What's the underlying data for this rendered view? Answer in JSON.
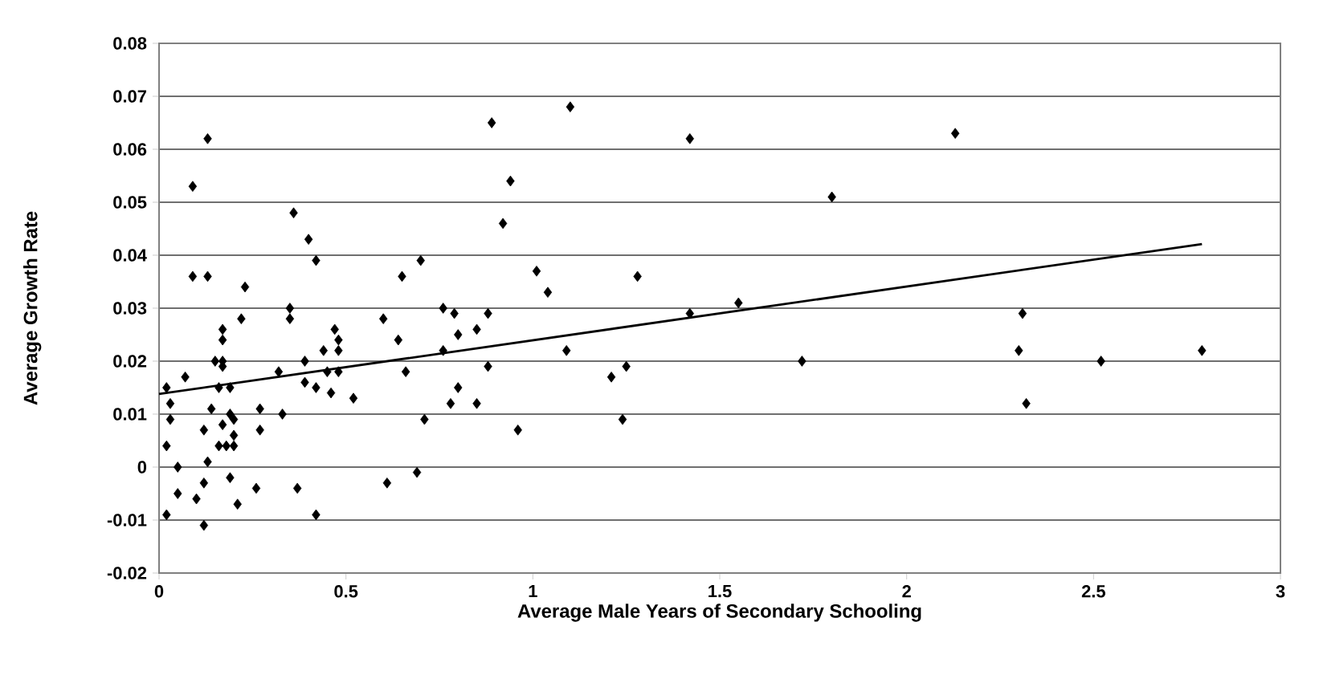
{
  "chart_data": {
    "type": "scatter",
    "xlabel": "Average Male Years of Secondary Schooling",
    "ylabel": "Average Growth Rate",
    "xlim": [
      0,
      3
    ],
    "ylim": [
      -0.02,
      0.08
    ],
    "xticks": [
      0,
      0.5,
      1,
      1.5,
      2,
      2.5,
      3
    ],
    "yticks": [
      -0.02,
      -0.01,
      0,
      0.01,
      0.02,
      0.03,
      0.04,
      0.05,
      0.06,
      0.07,
      0.08
    ],
    "grid": "y",
    "series": [
      {
        "color": "#000000",
        "marker": "diamond",
        "x": [
          0.02,
          0.02,
          0.02,
          0.03,
          0.03,
          0.05,
          0.05,
          0.07,
          0.09,
          0.09,
          0.1,
          0.12,
          0.12,
          0.12,
          0.13,
          0.13,
          0.13,
          0.14,
          0.15,
          0.16,
          0.16,
          0.17,
          0.17,
          0.17,
          0.17,
          0.17,
          0.18,
          0.19,
          0.19,
          0.19,
          0.2,
          0.2,
          0.2,
          0.21,
          0.22,
          0.23,
          0.26,
          0.27,
          0.27,
          0.32,
          0.33,
          0.35,
          0.35,
          0.36,
          0.37,
          0.39,
          0.39,
          0.4,
          0.42,
          0.42,
          0.42,
          0.44,
          0.45,
          0.46,
          0.47,
          0.48,
          0.48,
          0.48,
          0.52,
          0.6,
          0.61,
          0.64,
          0.65,
          0.66,
          0.69,
          0.7,
          0.71,
          0.76,
          0.76,
          0.79,
          0.78,
          0.8,
          0.8,
          0.85,
          0.85,
          0.88,
          0.88,
          0.89,
          0.92,
          0.94,
          0.96,
          1.01,
          1.04,
          1.1,
          1.09,
          1.21,
          1.25,
          1.24,
          1.28,
          1.42,
          1.42,
          1.55,
          1.72,
          1.8,
          2.13,
          2.31,
          2.3,
          2.32,
          2.52,
          2.79
        ],
        "values": [
          -0.009,
          0.004,
          0.015,
          0.012,
          0.009,
          0.0,
          -0.005,
          0.017,
          0.053,
          0.036,
          -0.006,
          -0.003,
          -0.011,
          0.007,
          0.062,
          0.036,
          0.001,
          0.011,
          0.02,
          0.004,
          0.015,
          0.026,
          0.02,
          0.024,
          0.019,
          0.008,
          0.004,
          -0.002,
          0.015,
          0.01,
          0.009,
          0.006,
          0.004,
          -0.007,
          0.028,
          0.034,
          -0.004,
          0.011,
          0.007,
          0.018,
          0.01,
          0.03,
          0.028,
          0.048,
          -0.004,
          0.02,
          0.016,
          0.043,
          -0.009,
          0.039,
          0.015,
          0.022,
          0.018,
          0.014,
          0.026,
          0.024,
          0.022,
          0.018,
          0.013,
          0.028,
          -0.003,
          0.024,
          0.036,
          0.018,
          -0.001,
          0.039,
          0.009,
          0.03,
          0.022,
          0.029,
          0.012,
          0.015,
          0.025,
          0.026,
          0.012,
          0.029,
          0.019,
          0.065,
          0.046,
          0.054,
          0.007,
          0.037,
          0.033,
          0.068,
          0.022,
          0.017,
          0.019,
          0.009,
          0.036,
          0.062,
          0.029,
          0.031,
          0.02,
          0.051,
          0.063,
          0.029,
          0.022,
          0.012,
          0.02,
          0.022
        ]
      },
      {
        "type": "line",
        "color": "#000000",
        "x": [
          0,
          2.79
        ],
        "values": [
          0.0138,
          0.0421
        ]
      }
    ]
  }
}
